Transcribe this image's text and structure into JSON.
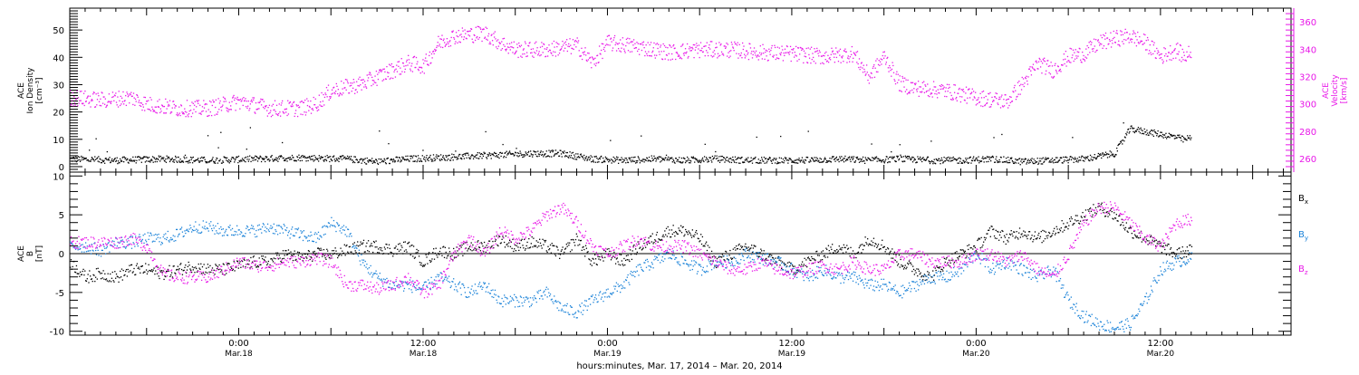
{
  "figure": {
    "footer_label": "hours:minutes, Mar. 17, 2014 – Mar. 20, 2014"
  },
  "colors": {
    "black": "#000000",
    "magenta": "#e817e8",
    "blue": "#1a82d8"
  },
  "chart_data": [
    {
      "type": "scatter",
      "panel": "top",
      "left_axis_label": [
        "ACE",
        "Ion Density",
        "[cm⁻³]"
      ],
      "right_axis_label": [
        "ACE",
        "Velocity",
        "[km/s]"
      ],
      "x_tick_labels": [
        {
          "x": 24,
          "time": "0:00",
          "date": "Mar.18"
        },
        {
          "x": 36,
          "time": "12:00",
          "date": "Mar.18"
        },
        {
          "x": 48,
          "time": "0:00",
          "date": "Mar.19"
        },
        {
          "x": 60,
          "time": "12:00",
          "date": "Mar.19"
        },
        {
          "x": 72,
          "time": "0:00",
          "date": "Mar.20"
        },
        {
          "x": 84,
          "time": "12:00",
          "date": "Mar.20"
        }
      ],
      "xlim": [
        13,
        92.5
      ],
      "left_ylim": [
        -2,
        58
      ],
      "left_ticks": [
        0,
        10,
        20,
        30,
        40,
        50
      ],
      "right_ylim": [
        250,
        370
      ],
      "right_ticks": [
        260,
        280,
        300,
        320,
        340,
        360
      ],
      "series": [
        {
          "color": "black",
          "axis": "left",
          "x": [
            13,
            16,
            19,
            22,
            25,
            28,
            31,
            33,
            35,
            37,
            39,
            41,
            43,
            45,
            47,
            49,
            51,
            53,
            55,
            57,
            59,
            61,
            63,
            65,
            67,
            69,
            71,
            73,
            75,
            77,
            79,
            81,
            82,
            83,
            84,
            85,
            85.5,
            86
          ],
          "y": [
            3,
            2.5,
            3,
            2.5,
            3,
            3.5,
            3,
            2,
            3,
            3.5,
            4,
            4.5,
            5,
            5,
            3,
            2.5,
            3,
            2.5,
            3,
            2.5,
            2.5,
            2.5,
            3,
            2.5,
            3,
            2.5,
            2.5,
            3,
            2,
            2.5,
            3,
            5,
            14,
            13,
            12,
            11,
            10,
            11
          ]
        },
        {
          "color": "magenta",
          "axis": "right",
          "x": [
            13,
            15,
            17,
            18,
            20,
            22,
            24,
            26,
            28,
            29,
            30,
            32,
            34,
            35,
            36,
            37,
            38,
            40,
            41,
            42,
            44,
            46,
            47,
            48,
            50,
            52,
            54,
            56,
            58,
            60,
            62,
            64,
            65,
            66,
            67,
            68,
            70,
            72,
            74,
            75,
            76,
            77,
            78,
            79,
            80,
            81,
            82,
            83,
            84,
            85,
            85.5,
            86
          ],
          "y": [
            305,
            303,
            305,
            300,
            297,
            297,
            302,
            297,
            297,
            300,
            310,
            315,
            325,
            330,
            328,
            345,
            350,
            352,
            345,
            340,
            340,
            343,
            330,
            345,
            342,
            338,
            340,
            340,
            338,
            337,
            335,
            337,
            320,
            335,
            315,
            312,
            310,
            305,
            302,
            315,
            330,
            325,
            335,
            337,
            345,
            348,
            350,
            345,
            335,
            340,
            335,
            338
          ]
        }
      ]
    },
    {
      "type": "scatter",
      "panel": "bottom",
      "left_axis_label": [
        "ACE",
        "B",
        "[nT]"
      ],
      "legend": [
        "Bx",
        "By",
        "Bz"
      ],
      "xlim": [
        13,
        92.5
      ],
      "ylim": [
        -10.5,
        10.5
      ],
      "y_ticks": [
        -10,
        -5,
        0,
        5,
        10
      ],
      "zero_line": true,
      "series": [
        {
          "name": "Bx",
          "color": "black",
          "x": [
            13,
            14,
            15,
            16,
            17,
            18,
            19,
            20,
            21,
            22,
            23,
            24,
            25,
            26,
            27,
            28,
            29,
            30,
            31,
            32,
            33,
            34,
            35,
            36,
            37,
            38,
            39,
            40,
            41,
            42,
            43,
            44,
            45,
            46,
            47,
            48,
            49,
            50,
            51,
            52,
            53,
            54,
            55,
            56,
            57,
            58,
            59,
            60,
            61,
            62,
            63,
            64,
            65,
            66,
            67,
            68,
            69,
            70,
            71,
            72,
            73,
            74,
            75,
            76,
            77,
            78,
            79,
            80,
            81,
            82,
            83,
            84,
            85,
            86
          ],
          "y": [
            -1,
            -3,
            -2.5,
            -3,
            -2,
            -2,
            -2.5,
            -2,
            -1.5,
            -2,
            -2,
            -1.5,
            -1,
            -1,
            0,
            -0.5,
            0,
            0,
            0.5,
            1,
            1,
            0.5,
            1,
            -1,
            0.5,
            0,
            1,
            1,
            2,
            1,
            1.5,
            1,
            0,
            2,
            -1,
            0,
            -1,
            1,
            2,
            3,
            3,
            2,
            -1,
            0,
            1,
            0,
            -1,
            -2,
            -1,
            0,
            1,
            0,
            2,
            1,
            -1,
            -2,
            -3,
            -1,
            0,
            1,
            3,
            2,
            3,
            2,
            3,
            4,
            5,
            6,
            5,
            3,
            2,
            1,
            0,
            0.5
          ]
        },
        {
          "name": "By",
          "color": "blue",
          "x": [
            13,
            14,
            15,
            16,
            17,
            18,
            19,
            20,
            21,
            22,
            23,
            24,
            25,
            26,
            27,
            28,
            29,
            30,
            31,
            32,
            33,
            34,
            35,
            36,
            37,
            38,
            39,
            40,
            41,
            42,
            43,
            44,
            45,
            46,
            47,
            48,
            49,
            50,
            51,
            52,
            53,
            54,
            55,
            56,
            57,
            58,
            59,
            60,
            61,
            62,
            63,
            64,
            65,
            66,
            67,
            68,
            69,
            70,
            71,
            72,
            73,
            74,
            75,
            76,
            77,
            78,
            79,
            80,
            81,
            82,
            83,
            84,
            85,
            86
          ],
          "y": [
            1,
            1,
            0.5,
            1.5,
            1.5,
            2,
            2,
            2.5,
            3.5,
            3.5,
            3,
            3,
            3,
            3.5,
            3,
            2.5,
            2,
            4,
            3,
            -1,
            -3,
            -4,
            -4,
            -4.5,
            -3,
            -4,
            -5,
            -4,
            -6,
            -6,
            -6,
            -5,
            -7,
            -7.5,
            -6,
            -5,
            -4,
            -2,
            -1,
            0,
            -1,
            -2,
            -1,
            -1,
            0,
            -0.5,
            -1,
            -2,
            -3,
            -2,
            -3,
            -3,
            -4,
            -4,
            -5,
            -4,
            -3,
            -3,
            -2,
            0,
            -2,
            -1,
            -2,
            -3,
            -2,
            -6,
            -8,
            -9,
            -9.5,
            -9,
            -6,
            -2,
            -1,
            -0.5
          ]
        },
        {
          "name": "Bz",
          "color": "magenta",
          "x": [
            13,
            14,
            15,
            16,
            17,
            18,
            19,
            20,
            21,
            22,
            23,
            24,
            25,
            26,
            27,
            28,
            29,
            30,
            31,
            32,
            33,
            34,
            35,
            36,
            37,
            38,
            39,
            40,
            41,
            42,
            43,
            44,
            45,
            46,
            47,
            48,
            49,
            50,
            51,
            52,
            53,
            54,
            55,
            56,
            57,
            58,
            59,
            60,
            61,
            62,
            63,
            64,
            65,
            66,
            67,
            68,
            69,
            70,
            71,
            72,
            73,
            74,
            75,
            76,
            77,
            78,
            79,
            80,
            81,
            82,
            83,
            84,
            85,
            86
          ],
          "y": [
            1.5,
            1.5,
            1.5,
            1.5,
            2,
            1,
            -2.5,
            -3,
            -3,
            -3,
            -2,
            -1,
            -1.5,
            -1.5,
            -1,
            -1,
            -0.5,
            -1,
            -4,
            -4,
            -4.5,
            -4,
            -3,
            -5,
            -4,
            0,
            2,
            0,
            3,
            2,
            3,
            5,
            6,
            4,
            1,
            0,
            1,
            2,
            1,
            1,
            1,
            0,
            -1,
            -2,
            -2,
            -1,
            -2,
            -2.5,
            -2,
            -1.5,
            -2,
            -1,
            -2,
            -2,
            0,
            0,
            -1,
            -1,
            -1,
            0,
            0,
            -1,
            0,
            -2,
            -3,
            0,
            4,
            6,
            6,
            4,
            2,
            1,
            4,
            4.5
          ]
        }
      ]
    }
  ]
}
